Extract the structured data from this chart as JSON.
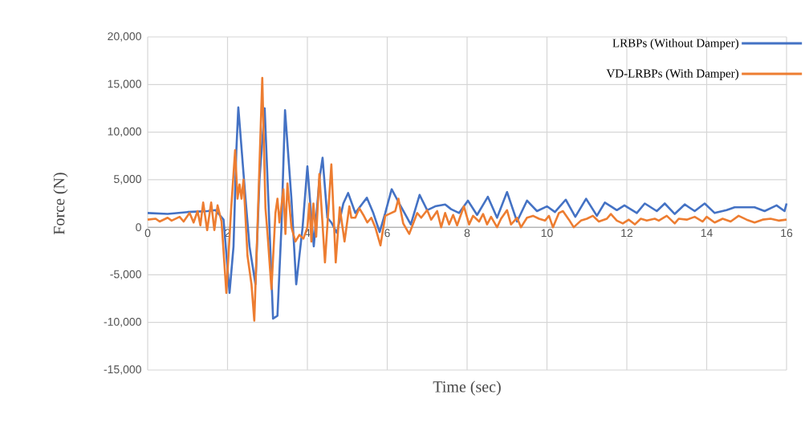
{
  "chart_data": {
    "type": "line",
    "xlabel": "Time (sec)",
    "ylabel": "Force (N)",
    "xlim": [
      0,
      16
    ],
    "ylim": [
      -15000,
      20000
    ],
    "xticks": [
      0,
      2,
      4,
      6,
      8,
      10,
      12,
      14,
      16
    ],
    "yticks": [
      {
        "value": -15000,
        "label": "-15,000"
      },
      {
        "value": -10000,
        "label": "-10,000"
      },
      {
        "value": -5000,
        "label": "-5,000"
      },
      {
        "value": 0,
        "label": "0"
      },
      {
        "value": 5000,
        "label": "5,000"
      },
      {
        "value": 10000,
        "label": "10,000"
      },
      {
        "value": 15000,
        "label": "15,000"
      },
      {
        "value": 20000,
        "label": "20,000"
      }
    ],
    "grid": true,
    "legend": "top right",
    "series": [
      {
        "name": "LRBPs (Without Damper)",
        "color": "#4472c4",
        "x": [
          0,
          0.5,
          1,
          1.5,
          1.7,
          1.9,
          2.05,
          2.15,
          2.22,
          2.27,
          2.45,
          2.55,
          2.7,
          2.8,
          2.93,
          3.05,
          3.14,
          3.25,
          3.35,
          3.44,
          3.6,
          3.72,
          3.88,
          4.0,
          4.1,
          4.16,
          4.3,
          4.38,
          4.5,
          4.6,
          4.74,
          4.9,
          5.02,
          5.2,
          5.38,
          5.49,
          5.65,
          5.81,
          5.95,
          6.11,
          6.3,
          6.59,
          6.81,
          7.0,
          7.2,
          7.45,
          7.6,
          7.8,
          8.02,
          8.25,
          8.52,
          8.75,
          9.0,
          9.25,
          9.5,
          9.75,
          10.0,
          10.2,
          10.47,
          10.71,
          10.98,
          11.25,
          11.45,
          11.75,
          11.94,
          12.25,
          12.45,
          12.75,
          12.95,
          13.2,
          13.45,
          13.7,
          13.95,
          14.2,
          14.5,
          14.7,
          15.0,
          15.2,
          15.45,
          15.75,
          15.95,
          16
        ],
        "values": [
          1500,
          1400,
          1600,
          1700,
          1800,
          800,
          -6900,
          -2000,
          8000,
          12600,
          3000,
          -2000,
          -6000,
          5000,
          12500,
          0,
          -9600,
          -9300,
          0,
          12300,
          3000,
          -6000,
          0,
          6400,
          1000,
          -2000,
          5000,
          7300,
          1000,
          500,
          -600,
          2500,
          3600,
          1500,
          2500,
          3100,
          1500,
          -500,
          1500,
          4000,
          2500,
          300,
          3400,
          1800,
          2200,
          2400,
          1900,
          1500,
          2800,
          1300,
          3200,
          1000,
          3700,
          600,
          2800,
          1700,
          2200,
          1600,
          2900,
          1100,
          3000,
          1200,
          2600,
          1800,
          2300,
          1500,
          2500,
          1700,
          2500,
          1400,
          2400,
          1700,
          2500,
          1500,
          1800,
          2100,
          2100,
          2100,
          1700,
          2300,
          1700,
          2500
        ]
      },
      {
        "name": "VD-LRBPs (With Damper)",
        "color": "#ed7d31",
        "x": [
          0,
          0.2,
          0.3,
          0.5,
          0.6,
          0.8,
          0.9,
          1.05,
          1.15,
          1.25,
          1.32,
          1.39,
          1.49,
          1.59,
          1.67,
          1.75,
          1.85,
          1.97,
          2.09,
          2.19,
          2.25,
          2.3,
          2.35,
          2.4,
          2.5,
          2.6,
          2.67,
          2.75,
          2.87,
          2.95,
          3.0,
          3.1,
          3.2,
          3.25,
          3.3,
          3.4,
          3.45,
          3.5,
          3.6,
          3.7,
          3.8,
          3.9,
          4.0,
          4.05,
          4.1,
          4.15,
          4.22,
          4.3,
          4.44,
          4.6,
          4.71,
          4.81,
          4.93,
          5.05,
          5.1,
          5.2,
          5.3,
          5.4,
          5.5,
          5.6,
          5.7,
          5.83,
          5.95,
          6.1,
          6.2,
          6.28,
          6.4,
          6.55,
          6.75,
          6.85,
          7.0,
          7.1,
          7.25,
          7.35,
          7.45,
          7.55,
          7.65,
          7.75,
          7.92,
          8.05,
          8.15,
          8.3,
          8.4,
          8.5,
          8.6,
          8.75,
          8.85,
          9.0,
          9.1,
          9.25,
          9.35,
          9.5,
          9.65,
          9.8,
          9.95,
          10.05,
          10.15,
          10.3,
          10.4,
          10.55,
          10.67,
          10.85,
          11.0,
          11.15,
          11.3,
          11.5,
          11.6,
          11.75,
          11.9,
          12.05,
          12.2,
          12.35,
          12.5,
          12.7,
          12.8,
          13.0,
          13.2,
          13.3,
          13.5,
          13.7,
          13.9,
          14.0,
          14.2,
          14.4,
          14.6,
          14.8,
          15.0,
          15.2,
          15.4,
          15.6,
          15.8,
          16.0
        ],
        "values": [
          800,
          900,
          600,
          1000,
          700,
          1100,
          600,
          1500,
          500,
          1700,
          200,
          2600,
          -300,
          2600,
          -300,
          2300,
          600,
          -6900,
          1900,
          8100,
          3000,
          4500,
          3000,
          5000,
          -3000,
          -6000,
          -9800,
          0,
          15700,
          2000,
          -600,
          -6500,
          1500,
          3000,
          500,
          4000,
          -700,
          4600,
          0,
          -1500,
          -800,
          -1200,
          0,
          2500,
          -1500,
          2500,
          -1000,
          5600,
          -3700,
          6600,
          -3700,
          2100,
          -1500,
          2200,
          1000,
          1000,
          2000,
          1300,
          500,
          1000,
          0,
          -1900,
          1200,
          1500,
          1700,
          3000,
          400,
          -700,
          1500,
          1000,
          1800,
          800,
          1700,
          0,
          1500,
          300,
          1300,
          200,
          2200,
          300,
          1200,
          600,
          1400,
          300,
          1100,
          0,
          900,
          1800,
          300,
          1000,
          0,
          1000,
          1200,
          900,
          700,
          1200,
          0,
          1500,
          1700,
          800,
          0,
          700,
          900,
          1200,
          600,
          900,
          1400,
          700,
          400,
          800,
          300,
          900,
          700,
          900,
          700,
          1200,
          400,
          900,
          800,
          1100,
          600,
          1100,
          500,
          900,
          600,
          1200,
          800,
          500,
          800,
          900,
          700,
          800
        ]
      }
    ]
  }
}
